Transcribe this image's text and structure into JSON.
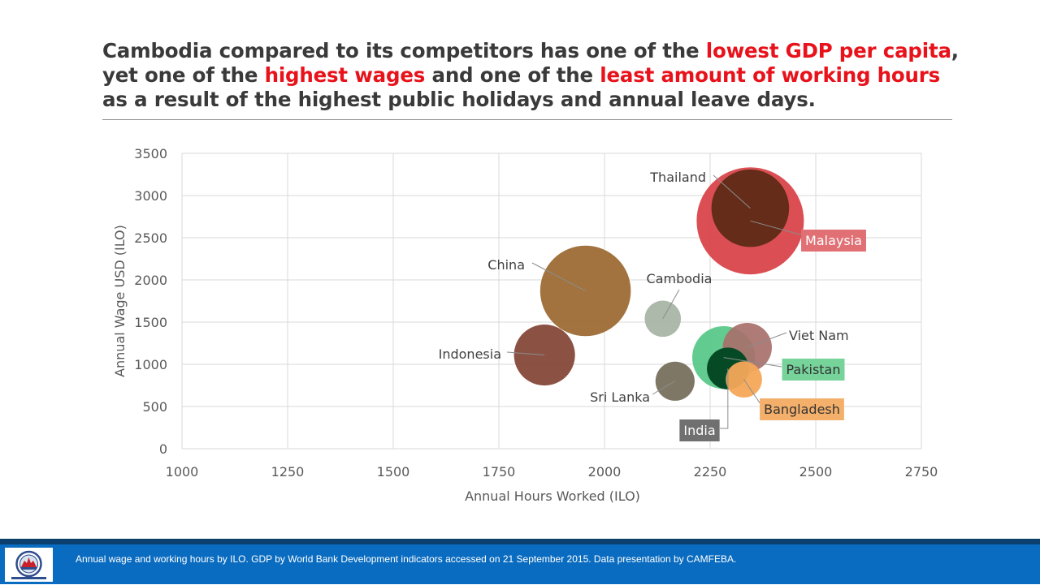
{
  "headline": {
    "parts": [
      {
        "text": "Cambodia compared to its competitors has one of the ",
        "highlight": false
      },
      {
        "text": "lowest GDP per capita",
        "highlight": true
      },
      {
        "text": ", yet one of the ",
        "highlight": false
      },
      {
        "text": "highest wages",
        "highlight": true
      },
      {
        "text": " and one of the ",
        "highlight": false
      },
      {
        "text": "least amount of working hours",
        "highlight": true
      },
      {
        "text": " as a result of the highest public holidays and annual leave days.",
        "highlight": false
      }
    ],
    "highlight_color": "#e8121b"
  },
  "chart_data": {
    "type": "scatter",
    "variant": "bubble",
    "xlabel": "Annual Hours Worked (ILO)",
    "ylabel": "Annual Wage USD (ILO)",
    "xlim": [
      1000,
      2750
    ],
    "ylim": [
      0,
      3500
    ],
    "xticks": [
      1000,
      1250,
      1500,
      1750,
      2000,
      2250,
      2500,
      2750
    ],
    "yticks": [
      0,
      500,
      1000,
      1500,
      2000,
      2500,
      3000,
      3500
    ],
    "grid": true,
    "series": [
      {
        "name": "Malaysia",
        "x": 2345,
        "y": 2700,
        "size": 10.5,
        "color": "#d9464b",
        "opacity": 0.95,
        "label_boxed": true,
        "label_bg": "#e07074",
        "label_fg": "#ffffff"
      },
      {
        "name": "Thailand",
        "x": 2345,
        "y": 2850,
        "size": 5.5,
        "color": "#5e2a16",
        "opacity": 0.95,
        "label_boxed": false
      },
      {
        "name": "China",
        "x": 1955,
        "y": 1870,
        "size": 7.5,
        "color": "#9a672e",
        "opacity": 0.92,
        "label_boxed": false
      },
      {
        "name": "Cambodia",
        "x": 2138,
        "y": 1540,
        "size": 1.2,
        "color": "#a9b5a6",
        "opacity": 0.95,
        "label_boxed": false
      },
      {
        "name": "Indonesia",
        "x": 1858,
        "y": 1110,
        "size": 3.4,
        "color": "#85493a",
        "opacity": 0.95,
        "label_boxed": false
      },
      {
        "name": "Viet Nam",
        "x": 2338,
        "y": 1200,
        "size": 2.2,
        "color": "#a7706a",
        "opacity": 0.92,
        "label_boxed": false
      },
      {
        "name": "Pakistan",
        "x": 2282,
        "y": 1080,
        "size": 3.6,
        "color": "#46c37d",
        "opacity": 0.85,
        "label_boxed": true,
        "label_bg": "#76d49b",
        "label_fg": "#333333"
      },
      {
        "name": "Sri Lanka",
        "x": 2167,
        "y": 800,
        "size": 1.4,
        "color": "#77705d",
        "opacity": 0.95,
        "label_boxed": false
      },
      {
        "name": "Bangladesh",
        "x": 2330,
        "y": 820,
        "size": 1.2,
        "color": "#f4a859",
        "opacity": 0.95,
        "label_boxed": true,
        "label_bg": "#f4b06a",
        "label_fg": "#333333"
      },
      {
        "name": "India",
        "x": 2292,
        "y": 950,
        "size": 1.6,
        "color": "#064a25",
        "opacity": 1,
        "label_boxed": true,
        "label_bg": "#707070",
        "label_fg": "#ffffff"
      }
    ]
  },
  "footer": {
    "source_text": "Annual wage and working hours by ILO.  GDP by World Bank Development indicators accessed on 21 September 2015.  Data presentation by CAMFEBA."
  }
}
